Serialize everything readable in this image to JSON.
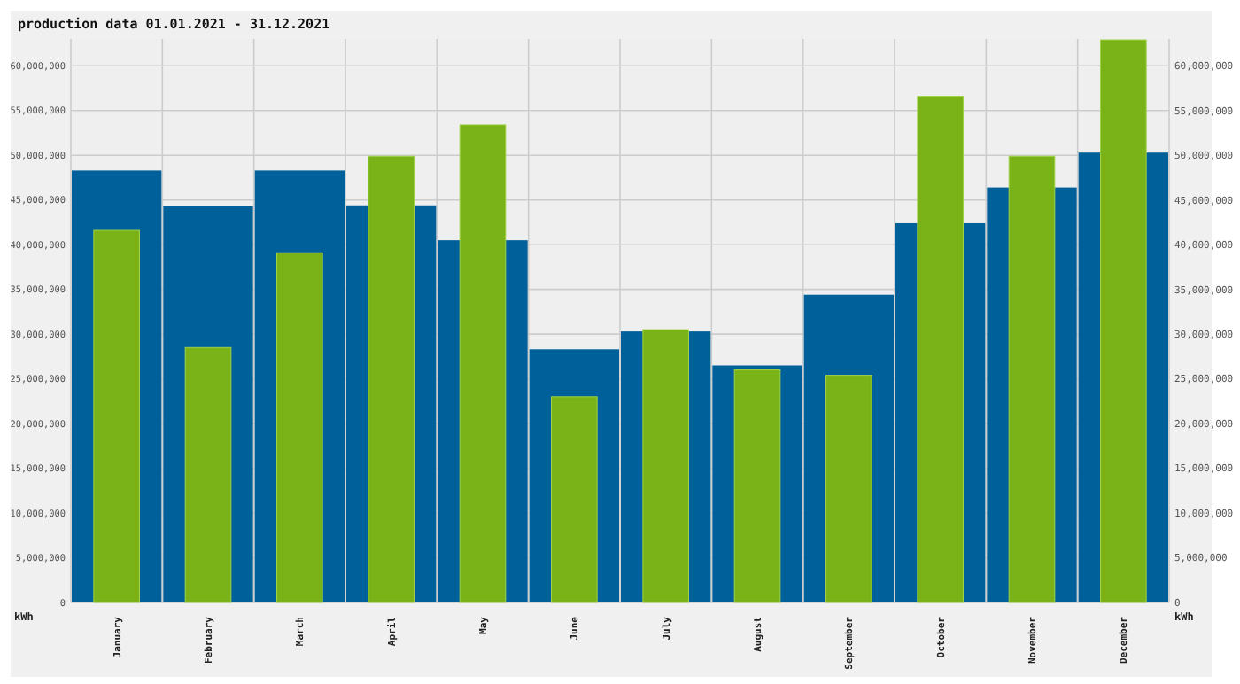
{
  "chart_data": {
    "type": "bar",
    "title": "production data 01.01.2021 - 31.12.2021",
    "ylabel": "kWh",
    "y2label": "kWh",
    "categories": [
      "January",
      "February",
      "March",
      "April",
      "May",
      "June",
      "July",
      "August",
      "September",
      "October",
      "November",
      "December"
    ],
    "series": [
      {
        "color": "#00609a",
        "values": [
          48300000,
          44300000,
          48300000,
          44400000,
          40500000,
          28300000,
          30300000,
          26500000,
          34400000,
          42400000,
          46400000,
          50300000
        ]
      },
      {
        "color": "#7ab317",
        "values": [
          41600000,
          28500000,
          39100000,
          49900000,
          53400000,
          23000000,
          30500000,
          26000000,
          25400000,
          56600000,
          49900000,
          62900000
        ]
      }
    ],
    "ylim": [
      0,
      63000000
    ],
    "yticks": [
      0,
      {
        "value": 5000000,
        "label": "5,000,000"
      },
      {
        "value": 10000000,
        "label": "10,000,000"
      },
      {
        "value": 15000000,
        "label": "15,000,000"
      },
      {
        "value": 20000000,
        "label": "20,000,000"
      },
      {
        "value": 25000000,
        "label": "25,000,000"
      },
      {
        "value": 30000000,
        "label": "30,000,000"
      },
      {
        "value": 35000000,
        "label": "35,000,000"
      },
      {
        "value": 40000000,
        "label": "40,000,000"
      },
      {
        "value": 45000000,
        "label": "45,000,000"
      },
      {
        "value": 50000000,
        "label": "50,000,000"
      },
      {
        "value": 55000000,
        "label": "55,000,000"
      },
      {
        "value": 60000000,
        "label": "60,000,000"
      }
    ],
    "y2lim": [
      0,
      63000000
    ],
    "y2ticks": [
      0,
      {
        "value": 5000000,
        "label": "5,000,000"
      },
      {
        "value": 10000000,
        "label": "10,000,000"
      },
      {
        "value": 15000000,
        "label": "15,000,000"
      },
      {
        "value": 20000000,
        "label": "20,000,000"
      },
      {
        "value": 25000000,
        "label": "25,000,000"
      },
      {
        "value": 30000000,
        "label": "30,000,000"
      },
      {
        "value": 35000000,
        "label": "35,000,000"
      },
      {
        "value": 40000000,
        "label": "40,000,000"
      },
      {
        "value": 45000000,
        "label": "45,000,000"
      },
      {
        "value": 50000000,
        "label": "50,000,000"
      },
      {
        "value": 55000000,
        "label": "55,000,000"
      },
      {
        "value": 60000000,
        "label": "60,000,000"
      }
    ],
    "grid": true
  }
}
